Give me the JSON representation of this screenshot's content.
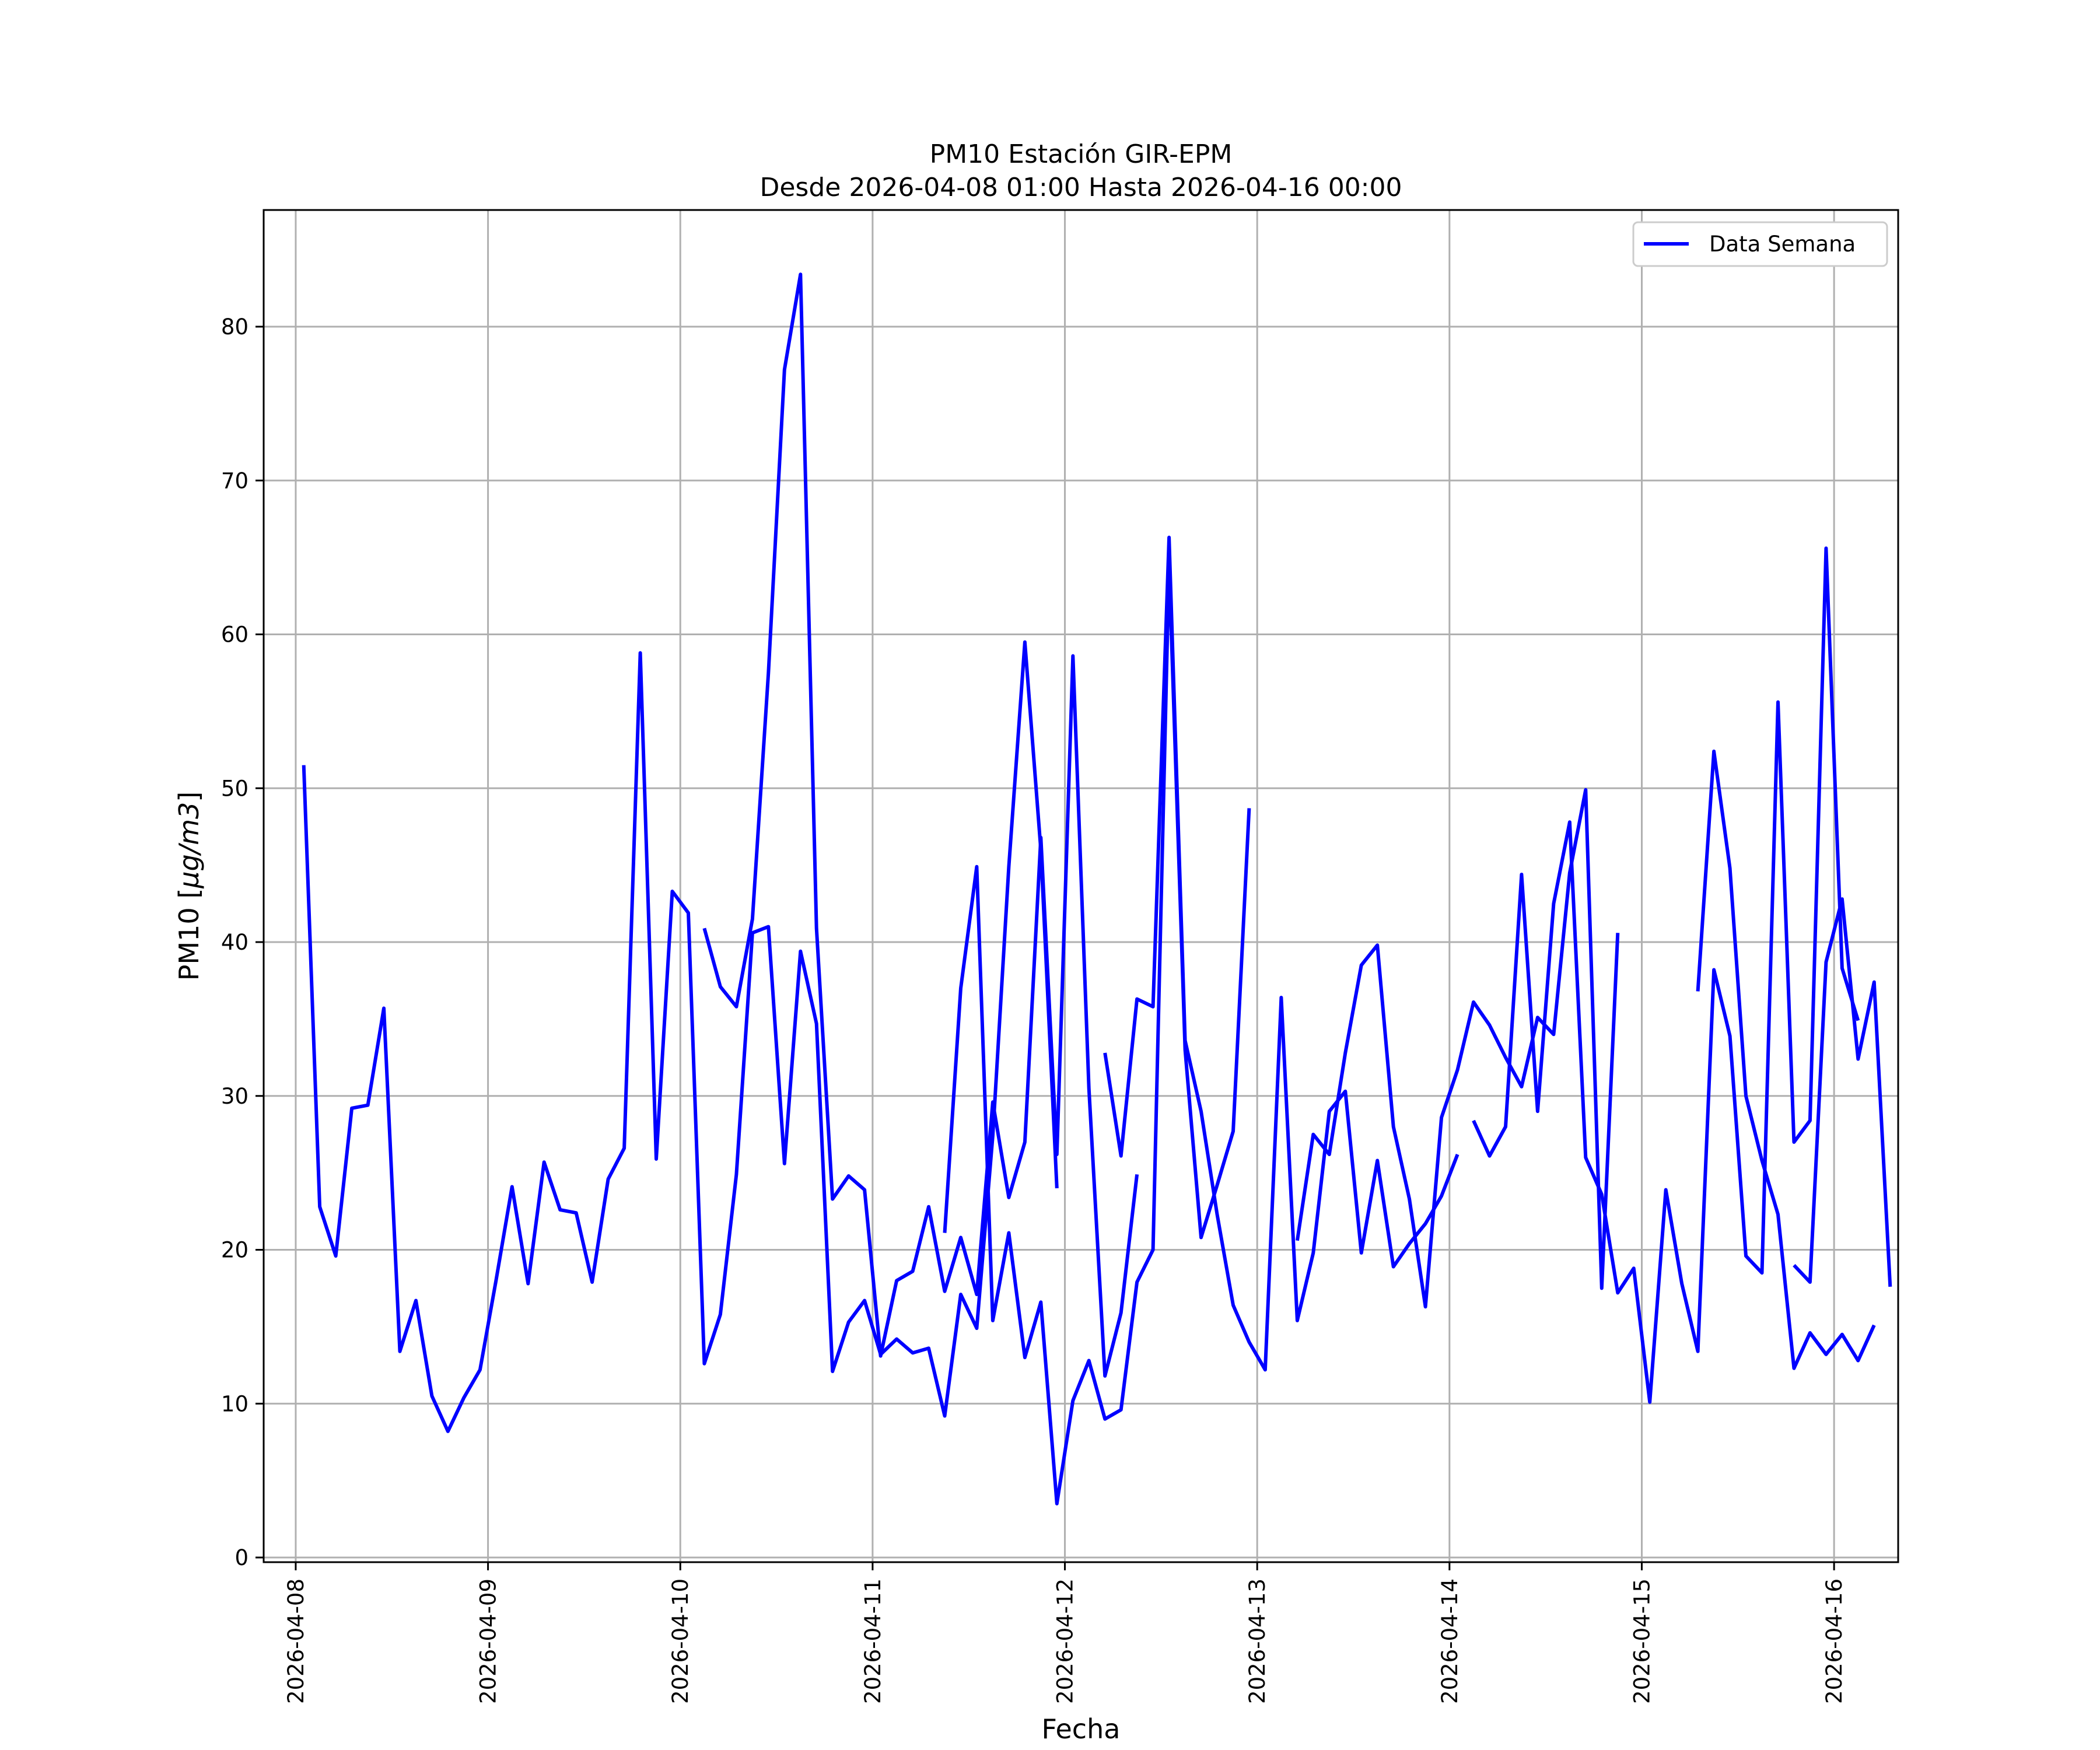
{
  "chart_data": {
    "type": "line",
    "title_line1": "PM10 Estación GIR-EPM",
    "title_line2": "Desde 2026-04-08 01:00 Hasta 2026-04-16 00:00",
    "xlabel": "Fecha",
    "ylabel_prefix": "PM10 [",
    "ylabel_math": "µg/m3",
    "ylabel_suffix": "]",
    "ylim": [
      0,
      85
    ],
    "yticks": [
      "0",
      "10",
      "20",
      "30",
      "40",
      "50",
      "60",
      "70",
      "80"
    ],
    "xlim": [
      "2026-04-07 20:00",
      "2026-04-16 08:00"
    ],
    "xticks": [
      "2026-04-08",
      "2026-04-09",
      "2026-04-10",
      "2026-04-11",
      "2026-04-12",
      "2026-04-13",
      "2026-04-14",
      "2026-04-15",
      "2026-04-16"
    ],
    "grid": true,
    "legend_position": "top-right",
    "series_color": "#0000ff",
    "series": [
      {
        "name": "Data Semana",
        "segments": [
          {
            "start": "2026-04-08 01:00",
            "interval_hours": 2,
            "values": [
              51.5,
              22.8,
              19.6,
              29.2,
              29.4,
              35.7,
              13.4,
              16.7,
              10.5,
              8.2,
              10.4,
              12.2,
              18.0,
              24.1,
              17.8,
              25.7,
              22.6,
              22.4,
              17.9,
              24.6,
              26.6,
              58.8,
              25.9,
              43.3,
              41.9,
              12.6,
              15.8,
              24.9,
              40.6,
              41.0,
              25.6,
              39.4,
              34.7,
              12.1,
              15.3,
              16.7,
              13.2,
              14.2,
              13.3,
              13.6,
              9.2,
              17.1,
              14.9,
              27.4,
              44.9,
              59.5,
              46.0,
              24.0
            ]
          },
          {
            "start": "2026-04-10 03:00",
            "interval_hours": 2,
            "values": [
              40.9,
              37.1,
              35.8,
              41.5,
              57.5,
              77.2,
              83.4,
              40.9,
              23.3,
              24.8,
              23.9,
              13.1,
              18.0,
              18.6,
              22.8,
              17.3,
              20.8,
              17.1,
              29.6,
              23.4,
              27.0,
              46.8,
              26.2,
              58.6,
              30.5,
              11.8,
              15.9,
              24.9
            ]
          },
          {
            "start": "2026-04-11 09:00",
            "interval_hours": 2,
            "values": [
              21.1,
              37.0,
              44.9,
              15.4,
              21.1,
              13.0,
              16.6,
              3.5,
              10.2,
              12.8,
              9.0,
              9.6,
              17.9,
              20.0,
              64.6,
              33.0,
              20.8,
              24.2,
              27.7,
              48.7
            ]
          },
          {
            "start": "2026-04-12 05:00",
            "interval_hours": 2,
            "values": [
              32.8,
              26.1,
              36.3,
              35.8,
              66.3,
              33.6,
              29.0,
              22.3,
              16.4,
              14.0,
              12.2,
              36.4,
              15.4,
              19.8,
              29.0,
              30.3,
              19.8,
              25.8,
              18.9,
              20.4,
              21.7,
              23.5,
              26.2
            ]
          },
          {
            "start": "2026-04-13 05:00",
            "interval_hours": 2,
            "values": [
              20.6,
              27.5,
              26.2,
              32.8,
              38.5,
              39.8,
              28.0,
              23.3,
              16.3,
              28.6,
              31.7,
              36.1,
              34.6,
              32.5,
              30.6,
              35.1,
              34.0,
              44.5,
              49.9,
              17.5,
              40.6
            ]
          },
          {
            "start": "2026-04-14 03:00",
            "interval_hours": 2,
            "values": [
              28.4,
              26.1,
              28.0,
              44.4,
              29.0,
              42.5,
              47.8,
              26.0,
              23.6,
              17.2,
              18.8,
              10.1,
              23.9,
              17.8,
              13.4,
              38.2,
              33.9,
              19.6,
              18.5,
              55.6,
              27.0,
              28.4,
              65.6,
              38.3,
              34.9
            ]
          },
          {
            "start": "2026-04-15 07:00",
            "interval_hours": 2,
            "values": [
              36.8,
              52.4,
              44.8,
              30.0,
              25.8,
              22.3,
              12.3,
              14.6,
              13.2,
              14.5,
              12.8,
              15.1
            ]
          },
          {
            "start": "2026-04-15 19:00",
            "interval_hours": 2,
            "values": [
              19.0,
              17.9,
              38.7,
              42.8,
              32.4,
              37.4,
              17.6
            ]
          }
        ]
      }
    ]
  }
}
